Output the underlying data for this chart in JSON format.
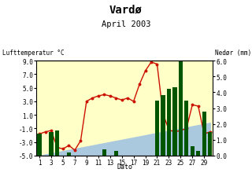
{
  "title": "Vardø",
  "subtitle": "April 2003",
  "xlabel": "Dato",
  "ylabel_left": "Lufttemperatur °C",
  "ylabel_right": "Nedør (mm)",
  "days": [
    1,
    2,
    3,
    4,
    5,
    6,
    7,
    8,
    9,
    10,
    11,
    12,
    13,
    14,
    15,
    16,
    17,
    18,
    19,
    20,
    21,
    22,
    23,
    24,
    25,
    26,
    27,
    28,
    29,
    30
  ],
  "temp": [
    -1.8,
    -1.5,
    -1.3,
    -3.8,
    -4.0,
    -3.5,
    -4.2,
    -2.8,
    3.0,
    3.5,
    3.8,
    4.0,
    3.8,
    3.5,
    3.2,
    3.5,
    3.0,
    5.5,
    7.5,
    8.8,
    8.5,
    1.2,
    -1.2,
    -1.5,
    -1.3,
    -1.0,
    2.5,
    2.3,
    -1.8,
    -1.5
  ],
  "precip": [
    1.4,
    0.0,
    1.5,
    1.6,
    0.0,
    0.2,
    0.0,
    0.0,
    0.0,
    0.0,
    0.0,
    0.4,
    0.0,
    0.3,
    0.0,
    0.0,
    0.0,
    0.0,
    0.0,
    0.0,
    3.5,
    3.8,
    4.2,
    4.3,
    6.8,
    3.5,
    0.6,
    0.3,
    2.8,
    1.5
  ],
  "normal_temp": [
    -5.0,
    -4.83,
    -4.67,
    -4.5,
    -4.33,
    -4.17,
    -4.0,
    -3.83,
    -3.67,
    -3.5,
    -3.33,
    -3.17,
    -3.0,
    -2.83,
    -2.67,
    -2.5,
    -2.33,
    -2.17,
    -2.0,
    -1.83,
    -1.67,
    -1.5,
    -1.33,
    -1.17,
    -1.0,
    -0.83,
    -0.67,
    -0.5,
    -0.33,
    -0.17
  ],
  "ylim_temp": [
    -5.0,
    9.0
  ],
  "ylim_precip": [
    0.0,
    6.0
  ],
  "xticks": [
    1,
    3,
    5,
    7,
    9,
    11,
    13,
    15,
    17,
    19,
    21,
    23,
    25,
    27,
    29
  ],
  "yticks_left": [
    -5.0,
    -3.0,
    -1.0,
    1.0,
    3.0,
    5.0,
    7.0,
    9.0
  ],
  "yticks_right": [
    0.0,
    1.0,
    2.0,
    3.0,
    4.0,
    5.0,
    6.0
  ],
  "warm_color": "#ffffc8",
  "cold_color": "#aac8de",
  "bar_color": "#005500",
  "line_color": "#cc1100",
  "title_fontsize": 10,
  "subtitle_fontsize": 7.5,
  "tick_fontsize": 5.5,
  "label_fontsize": 5.5
}
